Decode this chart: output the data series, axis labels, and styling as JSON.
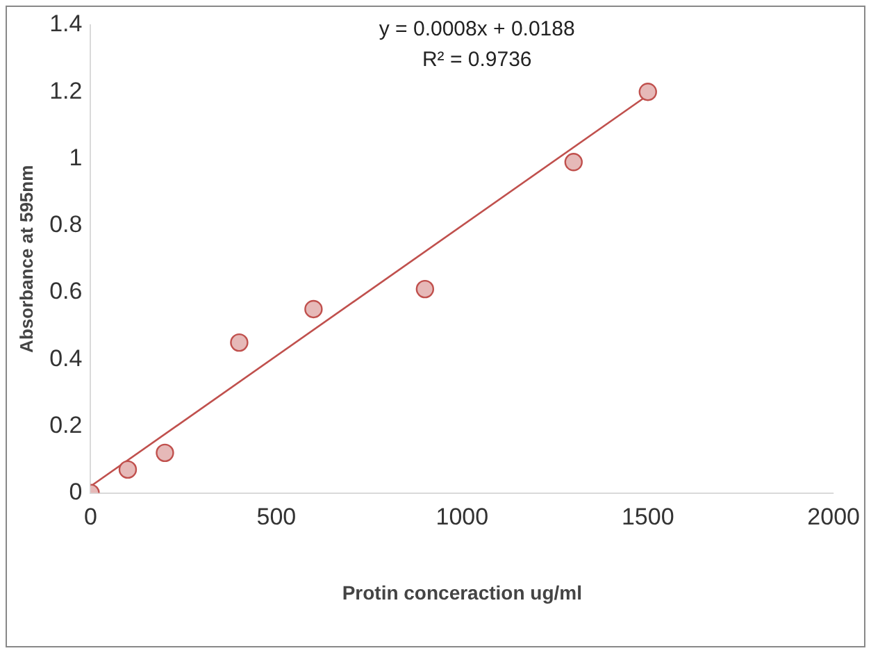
{
  "chart_data": {
    "type": "scatter",
    "xlabel": "Protin conceraction ug/ml",
    "ylabel": "Absorbance at 595nm",
    "annotations": [
      "y = 0.0008x + 0.0188",
      "R² = 0.9736"
    ],
    "series": [
      {
        "type": "scatter",
        "color": "#c0504d",
        "x": [
          0,
          100,
          200,
          400,
          600,
          900,
          1300,
          1500
        ],
        "values": [
          0,
          0.07,
          0.12,
          0.45,
          0.55,
          0.61,
          0.99,
          1.2
        ]
      },
      {
        "type": "line",
        "color": "#c0504d",
        "x": [
          0,
          1500
        ],
        "values": [
          0.02,
          1.19
        ],
        "marker": "none"
      }
    ],
    "xlim": [
      0,
      2000
    ],
    "xticks": [
      0,
      500,
      1000,
      1500,
      2000
    ],
    "ylim": [
      0,
      1.4
    ],
    "yticks": [
      0,
      0.2,
      0.4,
      0.6,
      0.8,
      1,
      1.2,
      1.4
    ],
    "grid": false,
    "legend": false,
    "marker": "circle"
  }
}
